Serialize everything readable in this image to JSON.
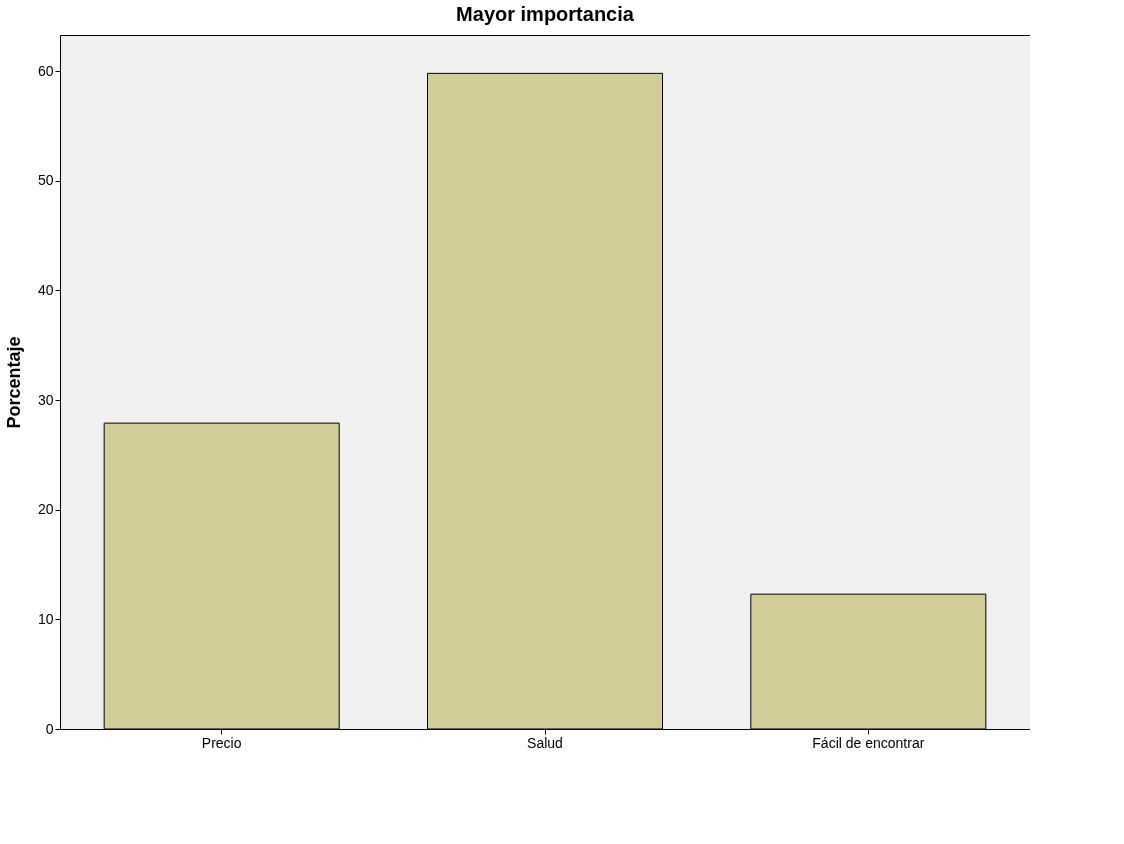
{
  "chart_data": {
    "type": "bar",
    "title": "Mayor importancia",
    "ylabel": "Porcentaje",
    "categories": [
      "Precio",
      "Salud",
      "Fácil de encontrar"
    ],
    "values": [
      27.9,
      59.8,
      12.3
    ],
    "color": "#d3ce97",
    "ylim": [
      0,
      63.3
    ],
    "yticks": [
      0,
      10,
      20,
      30,
      40,
      50,
      60
    ],
    "grid": false
  }
}
